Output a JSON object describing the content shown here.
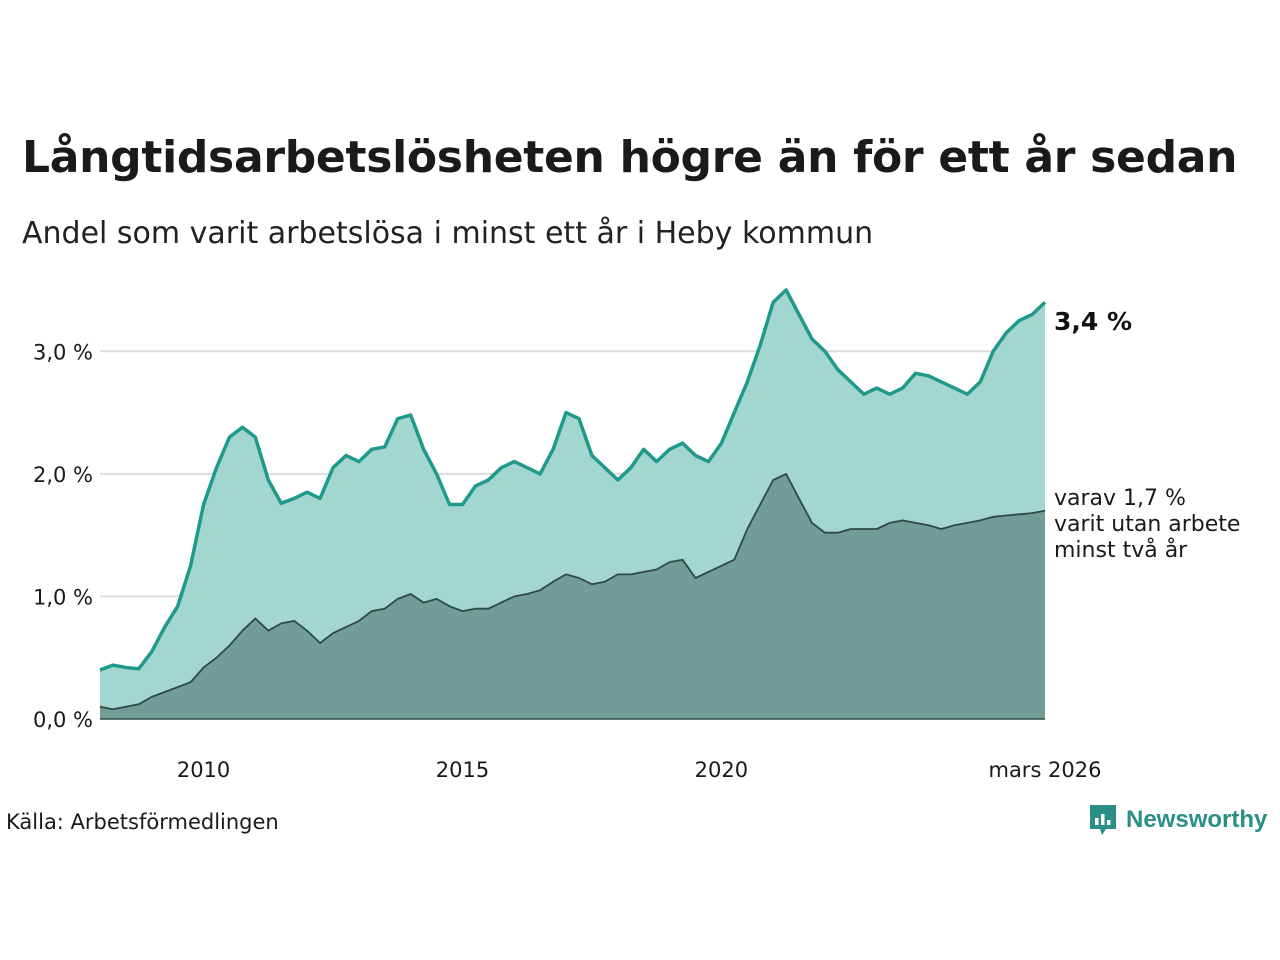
{
  "title": "Långtidsarbetslösheten högre än för ett år sedan",
  "subtitle": "Andel som varit arbetslösa i minst ett år i Heby kommun",
  "source": "Källa: Arbetsförmedlingen",
  "brand": "Newsworthy",
  "colors": {
    "line_total": "#1f9a8a",
    "area_total": "#a2d6cf",
    "line_long": "#2d4a44",
    "area_long": "#729d97",
    "grid": "#dddddd",
    "brand": "#2a8f86"
  },
  "end_labels": {
    "total": "3,4 %",
    "long_line1": "varav 1,7 %",
    "long_line2": "varit utan arbete",
    "long_line3": "minst två år"
  },
  "chart_data": {
    "type": "area",
    "title": "Långtidsarbetslösheten högre än för ett år sedan",
    "subtitle": "Andel som varit arbetslösa i minst ett år i Heby kommun",
    "xlabel": "",
    "ylabel": "",
    "x_range": [
      2008.0,
      2026.25
    ],
    "ylim": [
      0,
      3.5
    ],
    "y_ticks": [
      {
        "value": 0,
        "label": "0,0 %"
      },
      {
        "value": 1,
        "label": "1,0 %"
      },
      {
        "value": 2,
        "label": "2,0 %"
      },
      {
        "value": 3,
        "label": "3,0 %"
      }
    ],
    "x_ticks": [
      {
        "value": 2010,
        "label": "2010"
      },
      {
        "value": 2015,
        "label": "2015"
      },
      {
        "value": 2020,
        "label": "2020"
      },
      {
        "value": 2026.25,
        "label": "mars 2026"
      }
    ],
    "grid": true,
    "series": [
      {
        "name": "Minst ett år",
        "x": [
          2008.0,
          2008.25,
          2008.5,
          2008.75,
          2009.0,
          2009.25,
          2009.5,
          2009.75,
          2010.0,
          2010.25,
          2010.5,
          2010.75,
          2011.0,
          2011.25,
          2011.5,
          2011.75,
          2012.0,
          2012.25,
          2012.5,
          2012.75,
          2013.0,
          2013.25,
          2013.5,
          2013.75,
          2014.0,
          2014.25,
          2014.5,
          2014.75,
          2015.0,
          2015.25,
          2015.5,
          2015.75,
          2016.0,
          2016.25,
          2016.5,
          2016.75,
          2017.0,
          2017.25,
          2017.5,
          2017.75,
          2018.0,
          2018.25,
          2018.5,
          2018.75,
          2019.0,
          2019.25,
          2019.5,
          2019.75,
          2020.0,
          2020.25,
          2020.5,
          2020.75,
          2021.0,
          2021.25,
          2021.5,
          2021.75,
          2022.0,
          2022.25,
          2022.5,
          2022.75,
          2023.0,
          2023.25,
          2023.5,
          2023.75,
          2024.0,
          2024.25,
          2024.5,
          2024.75,
          2025.0,
          2025.25,
          2025.5,
          2025.75,
          2026.0,
          2026.25
        ],
        "values": [
          0.4,
          0.44,
          0.42,
          0.41,
          0.55,
          0.75,
          0.92,
          1.25,
          1.75,
          2.05,
          2.3,
          2.38,
          2.3,
          1.95,
          1.76,
          1.8,
          1.85,
          1.8,
          2.05,
          2.15,
          2.1,
          2.2,
          2.22,
          2.45,
          2.48,
          2.2,
          2.0,
          1.75,
          1.75,
          1.9,
          1.95,
          2.05,
          2.1,
          2.05,
          2.0,
          2.2,
          2.5,
          2.45,
          2.15,
          2.05,
          1.95,
          2.05,
          2.2,
          2.1,
          2.2,
          2.25,
          2.15,
          2.1,
          2.25,
          2.5,
          2.75,
          3.05,
          3.4,
          3.5,
          3.3,
          3.1,
          3.0,
          2.85,
          2.75,
          2.65,
          2.7,
          2.65,
          2.7,
          2.82,
          2.8,
          2.75,
          2.7,
          2.65,
          2.75,
          3.0,
          3.15,
          3.25,
          3.3,
          3.4
        ]
      },
      {
        "name": "Minst två år",
        "x": [
          2008.0,
          2008.25,
          2008.5,
          2008.75,
          2009.0,
          2009.25,
          2009.5,
          2009.75,
          2010.0,
          2010.25,
          2010.5,
          2010.75,
          2011.0,
          2011.25,
          2011.5,
          2011.75,
          2012.0,
          2012.25,
          2012.5,
          2012.75,
          2013.0,
          2013.25,
          2013.5,
          2013.75,
          2014.0,
          2014.25,
          2014.5,
          2014.75,
          2015.0,
          2015.25,
          2015.5,
          2015.75,
          2016.0,
          2016.25,
          2016.5,
          2016.75,
          2017.0,
          2017.25,
          2017.5,
          2017.75,
          2018.0,
          2018.25,
          2018.5,
          2018.75,
          2019.0,
          2019.25,
          2019.5,
          2019.75,
          2020.0,
          2020.25,
          2020.5,
          2020.75,
          2021.0,
          2021.25,
          2021.5,
          2021.75,
          2022.0,
          2022.25,
          2022.5,
          2022.75,
          2023.0,
          2023.25,
          2023.5,
          2023.75,
          2024.0,
          2024.25,
          2024.5,
          2024.75,
          2025.0,
          2025.25,
          2025.5,
          2025.75,
          2026.0,
          2026.25
        ],
        "values": [
          0.1,
          0.08,
          0.1,
          0.12,
          0.18,
          0.22,
          0.26,
          0.3,
          0.42,
          0.5,
          0.6,
          0.72,
          0.82,
          0.72,
          0.78,
          0.8,
          0.72,
          0.62,
          0.7,
          0.75,
          0.8,
          0.88,
          0.9,
          0.98,
          1.02,
          0.95,
          0.98,
          0.92,
          0.88,
          0.9,
          0.9,
          0.95,
          1.0,
          1.02,
          1.05,
          1.12,
          1.18,
          1.15,
          1.1,
          1.12,
          1.18,
          1.18,
          1.2,
          1.22,
          1.28,
          1.3,
          1.15,
          1.2,
          1.25,
          1.3,
          1.55,
          1.75,
          1.95,
          2.0,
          1.8,
          1.6,
          1.52,
          1.52,
          1.55,
          1.55,
          1.55,
          1.6,
          1.62,
          1.6,
          1.58,
          1.55,
          1.58,
          1.6,
          1.62,
          1.65,
          1.66,
          1.67,
          1.68,
          1.7
        ]
      }
    ]
  }
}
